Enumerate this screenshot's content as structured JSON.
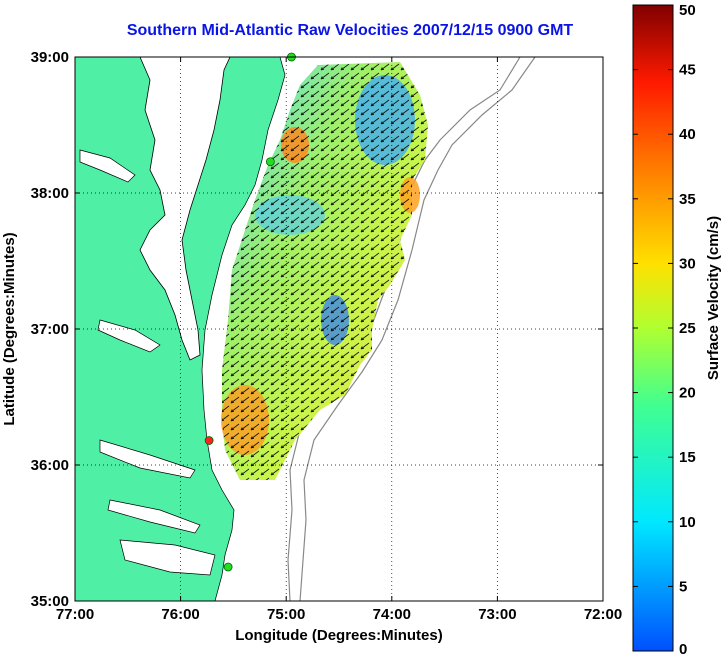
{
  "title": "Southern Mid-Atlantic Raw Velocities 2007/12/15 0900 GMT",
  "x_axis": {
    "label": "Longitude (Degrees:Minutes)",
    "ticks": [
      "77:00",
      "76:00",
      "75:00",
      "74:00",
      "73:00",
      "72:00"
    ]
  },
  "y_axis": {
    "label": "Latitude (Degrees:Minutes)",
    "ticks": [
      "39:00",
      "38:00",
      "37:00",
      "36:00",
      "35:00"
    ]
  },
  "colorbar": {
    "label": "Surface Velocity (cm/s)",
    "ticks": [
      "50",
      "45",
      "40",
      "35",
      "30",
      "25",
      "20",
      "15",
      "10",
      "5",
      "0"
    ],
    "min": 0,
    "max": 50,
    "colormap": "jet"
  },
  "map": {
    "lon_range": [
      -77,
      -72
    ],
    "lat_range": [
      35,
      39
    ],
    "gridlines": "dotted",
    "land_color": "#4ff0a6",
    "stations": [
      {
        "lon": -74.95,
        "lat": 39.0,
        "color": "#22dd22"
      },
      {
        "lon": -75.15,
        "lat": 38.23,
        "color": "#22dd22"
      },
      {
        "lon": -75.73,
        "lat": 36.18,
        "color": "#ff2020"
      },
      {
        "lon": -75.55,
        "lat": 35.25,
        "color": "#22dd22"
      }
    ]
  }
}
